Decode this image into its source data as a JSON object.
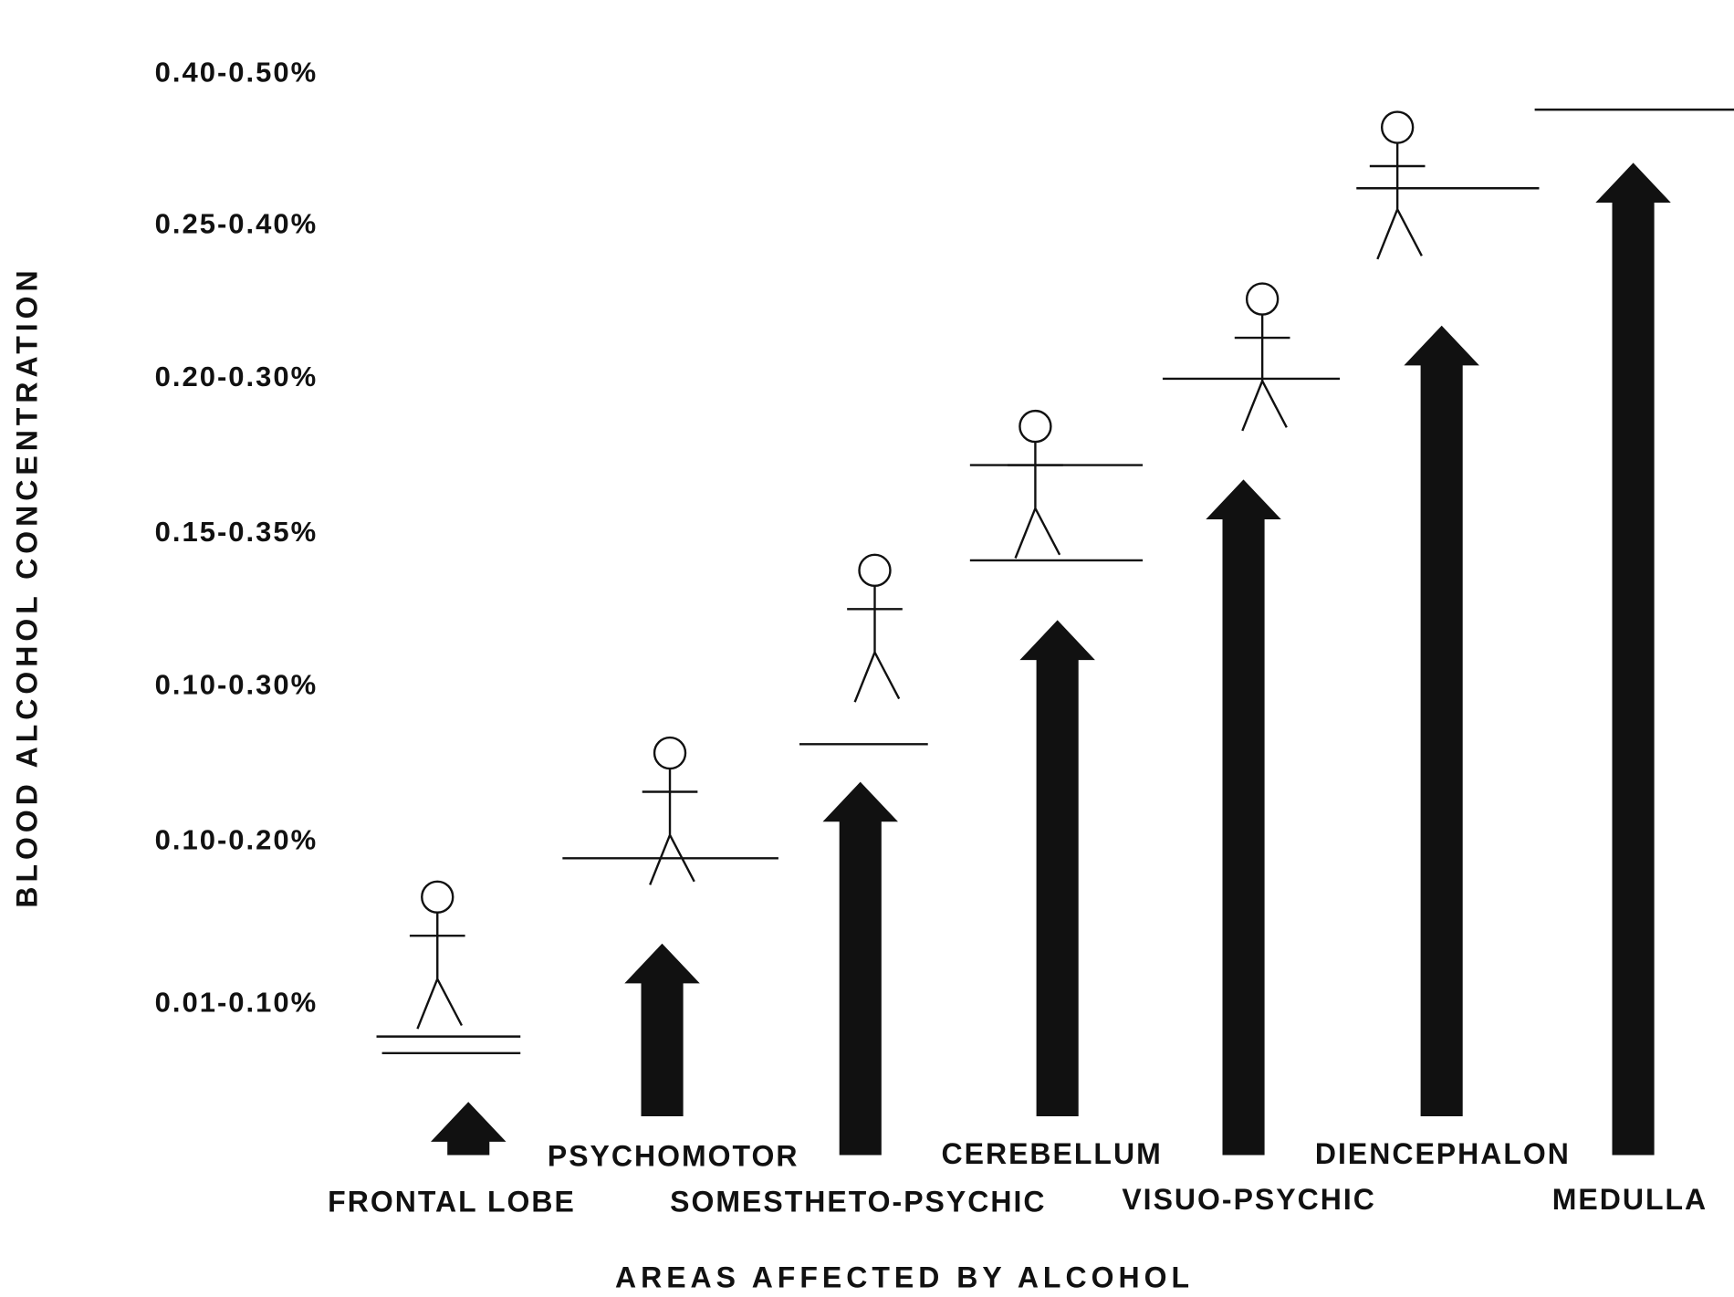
{
  "y_axis": {
    "title": "BLOOD ALCOHOL CONCENTRATION",
    "levels": [
      "0.01-0.10%",
      "0.10-0.20%",
      "0.10-0.30%",
      "0.15-0.35%",
      "0.20-0.30%",
      "0.25-0.40%",
      "0.40-0.50%"
    ]
  },
  "areas": [
    "FRONTAL LOBE",
    "PSYCHOMOTOR",
    "SOMESTHETO-PSYCHIC",
    "CEREBELLUM",
    "VISUO-PSYCHIC",
    "DIENCEPHALON",
    "MEDULLA"
  ],
  "x_axis": {
    "title": "AREAS AFFECTED BY ALCOHOL"
  }
}
